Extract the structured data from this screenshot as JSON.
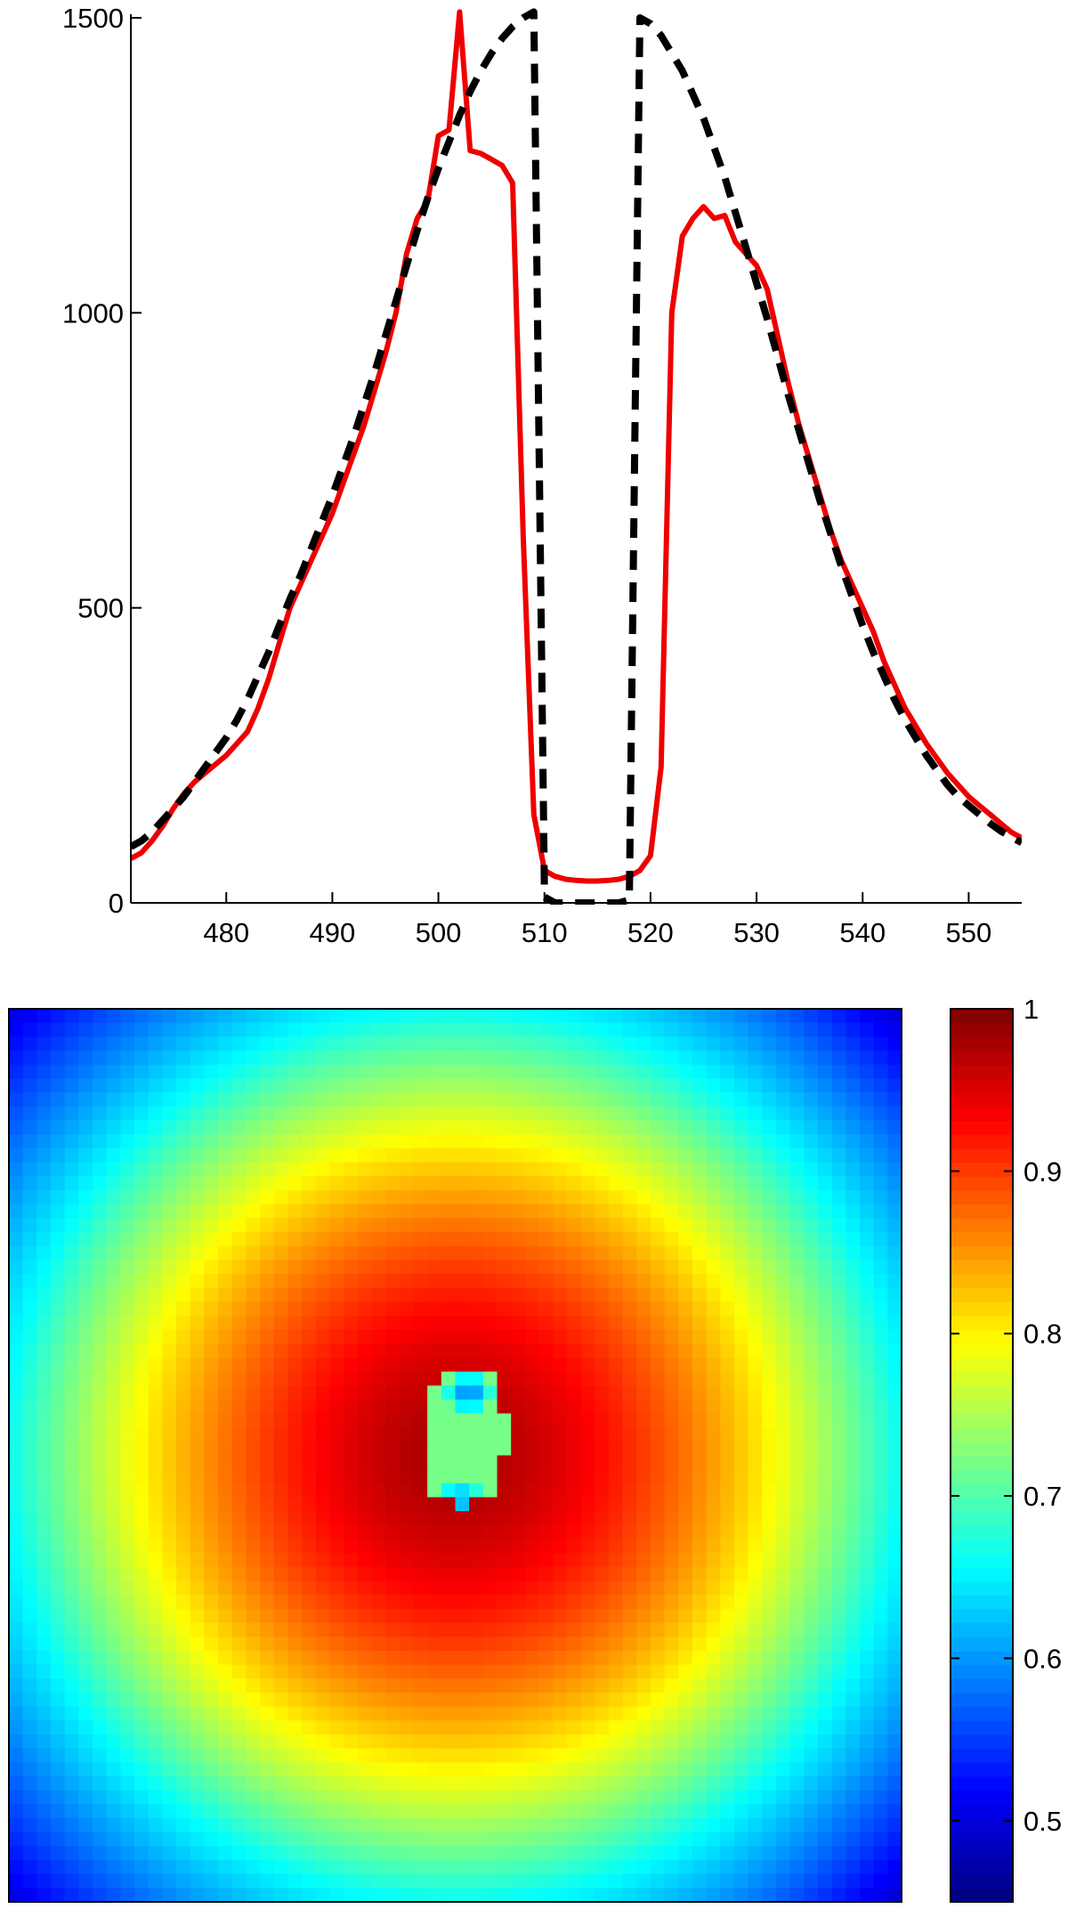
{
  "chart_data": [
    {
      "type": "line",
      "title": "",
      "xlabel": "",
      "ylabel": "",
      "xlim": [
        471,
        555
      ],
      "ylim": [
        0,
        1500
      ],
      "xticks": [
        480,
        490,
        500,
        510,
        520,
        530,
        540,
        550
      ],
      "yticks": [
        0,
        500,
        1000,
        1500
      ],
      "grid": false,
      "series": [
        {
          "style": "solid",
          "color": "#ee0000",
          "points": [
            [
              471,
              75
            ],
            [
              472,
              85
            ],
            [
              473,
              105
            ],
            [
              474,
              130
            ],
            [
              475,
              160
            ],
            [
              476,
              185
            ],
            [
              477,
              205
            ],
            [
              478,
              220
            ],
            [
              479,
              235
            ],
            [
              480,
              250
            ],
            [
              481,
              270
            ],
            [
              482,
              290
            ],
            [
              483,
              330
            ],
            [
              484,
              380
            ],
            [
              485,
              440
            ],
            [
              486,
              500
            ],
            [
              487,
              540
            ],
            [
              488,
              580
            ],
            [
              489,
              620
            ],
            [
              490,
              660
            ],
            [
              491,
              710
            ],
            [
              492,
              760
            ],
            [
              493,
              810
            ],
            [
              494,
              870
            ],
            [
              495,
              930
            ],
            [
              496,
              1000
            ],
            [
              497,
              1100
            ],
            [
              498,
              1160
            ],
            [
              499,
              1190
            ],
            [
              500,
              1300
            ],
            [
              501,
              1310
            ],
            [
              502,
              1510
            ],
            [
              503,
              1275
            ],
            [
              504,
              1270
            ],
            [
              505,
              1260
            ],
            [
              506,
              1250
            ],
            [
              507,
              1220
            ],
            [
              508,
              620
            ],
            [
              509,
              150
            ],
            [
              510,
              55
            ],
            [
              511,
              45
            ],
            [
              512,
              40
            ],
            [
              513,
              38
            ],
            [
              514,
              37
            ],
            [
              515,
              37
            ],
            [
              516,
              38
            ],
            [
              517,
              40
            ],
            [
              518,
              45
            ],
            [
              519,
              55
            ],
            [
              520,
              80
            ],
            [
              521,
              230
            ],
            [
              522,
              1000
            ],
            [
              523,
              1130
            ],
            [
              524,
              1160
            ],
            [
              525,
              1180
            ],
            [
              526,
              1160
            ],
            [
              527,
              1165
            ],
            [
              528,
              1120
            ],
            [
              529,
              1100
            ],
            [
              530,
              1080
            ],
            [
              531,
              1040
            ],
            [
              532,
              960
            ],
            [
              533,
              880
            ],
            [
              534,
              810
            ],
            [
              535,
              750
            ],
            [
              536,
              690
            ],
            [
              537,
              630
            ],
            [
              538,
              580
            ],
            [
              539,
              540
            ],
            [
              540,
              500
            ],
            [
              541,
              460
            ],
            [
              542,
              410
            ],
            [
              543,
              370
            ],
            [
              544,
              330
            ],
            [
              545,
              300
            ],
            [
              546,
              270
            ],
            [
              547,
              245
            ],
            [
              548,
              220
            ],
            [
              549,
              200
            ],
            [
              550,
              180
            ],
            [
              551,
              165
            ],
            [
              552,
              150
            ],
            [
              553,
              135
            ],
            [
              554,
              120
            ],
            [
              555,
              110
            ]
          ]
        },
        {
          "style": "dashed",
          "color": "#000000",
          "points": [
            [
              471,
              95
            ],
            [
              472,
              105
            ],
            [
              473,
              120
            ],
            [
              474,
              140
            ],
            [
              475,
              160
            ],
            [
              476,
              180
            ],
            [
              477,
              205
            ],
            [
              478,
              230
            ],
            [
              479,
              255
            ],
            [
              480,
              280
            ],
            [
              481,
              310
            ],
            [
              482,
              345
            ],
            [
              483,
              385
            ],
            [
              484,
              425
            ],
            [
              485,
              470
            ],
            [
              486,
              515
            ],
            [
              487,
              555
            ],
            [
              488,
              600
            ],
            [
              489,
              645
            ],
            [
              490,
              690
            ],
            [
              491,
              740
            ],
            [
              492,
              790
            ],
            [
              493,
              845
            ],
            [
              494,
              900
            ],
            [
              495,
              960
            ],
            [
              496,
              1020
            ],
            [
              497,
              1080
            ],
            [
              498,
              1140
            ],
            [
              499,
              1195
            ],
            [
              500,
              1245
            ],
            [
              501,
              1290
            ],
            [
              502,
              1335
            ],
            [
              503,
              1375
            ],
            [
              504,
              1410
            ],
            [
              505,
              1440
            ],
            [
              506,
              1465
            ],
            [
              507,
              1485
            ],
            [
              508,
              1500
            ],
            [
              509,
              1510
            ],
            [
              510,
              10
            ],
            [
              511,
              0
            ],
            [
              512,
              0
            ],
            [
              513,
              0
            ],
            [
              514,
              0
            ],
            [
              515,
              0
            ],
            [
              516,
              0
            ],
            [
              517,
              0
            ],
            [
              518,
              5
            ],
            [
              519,
              1500
            ],
            [
              520,
              1490
            ],
            [
              521,
              1470
            ],
            [
              522,
              1440
            ],
            [
              523,
              1410
            ],
            [
              524,
              1370
            ],
            [
              525,
              1330
            ],
            [
              526,
              1280
            ],
            [
              527,
              1230
            ],
            [
              528,
              1170
            ],
            [
              529,
              1110
            ],
            [
              530,
              1050
            ],
            [
              531,
              990
            ],
            [
              532,
              925
            ],
            [
              533,
              860
            ],
            [
              534,
              800
            ],
            [
              535,
              740
            ],
            [
              536,
              680
            ],
            [
              537,
              625
            ],
            [
              538,
              570
            ],
            [
              539,
              520
            ],
            [
              540,
              470
            ],
            [
              541,
              425
            ],
            [
              542,
              385
            ],
            [
              543,
              345
            ],
            [
              544,
              310
            ],
            [
              545,
              280
            ],
            [
              546,
              250
            ],
            [
              547,
              225
            ],
            [
              548,
              200
            ],
            [
              549,
              180
            ],
            [
              550,
              165
            ],
            [
              551,
              150
            ],
            [
              552,
              135
            ],
            [
              553,
              122
            ],
            [
              554,
              112
            ],
            [
              555,
              102
            ]
          ]
        }
      ]
    },
    {
      "type": "heatmap",
      "title": "",
      "colormap": "jet",
      "grid_size": [
        64,
        64
      ],
      "field": {
        "description_of_values": "radially symmetric field: ~0.98 near center falling to ~0.65 at edges and ~0.5 in corners; small inclusion at center-left with value ~0.7 and two hotspots ~0.6",
        "center_value": 0.98,
        "edge_value": 0.66,
        "corner_value": 0.5,
        "inclusion": {
          "center": [
            0.51,
            0.48
          ],
          "half_size": [
            0.045,
            0.075
          ],
          "value": 0.72,
          "hotspots": [
            [
              0.515,
              0.43,
              0.6
            ],
            [
              0.505,
              0.55,
              0.62
            ]
          ]
        }
      },
      "colorbar": {
        "min": 0.45,
        "max": 1.0,
        "ticks": [
          0.5,
          0.6,
          0.7,
          0.8,
          0.9,
          1
        ]
      }
    }
  ]
}
